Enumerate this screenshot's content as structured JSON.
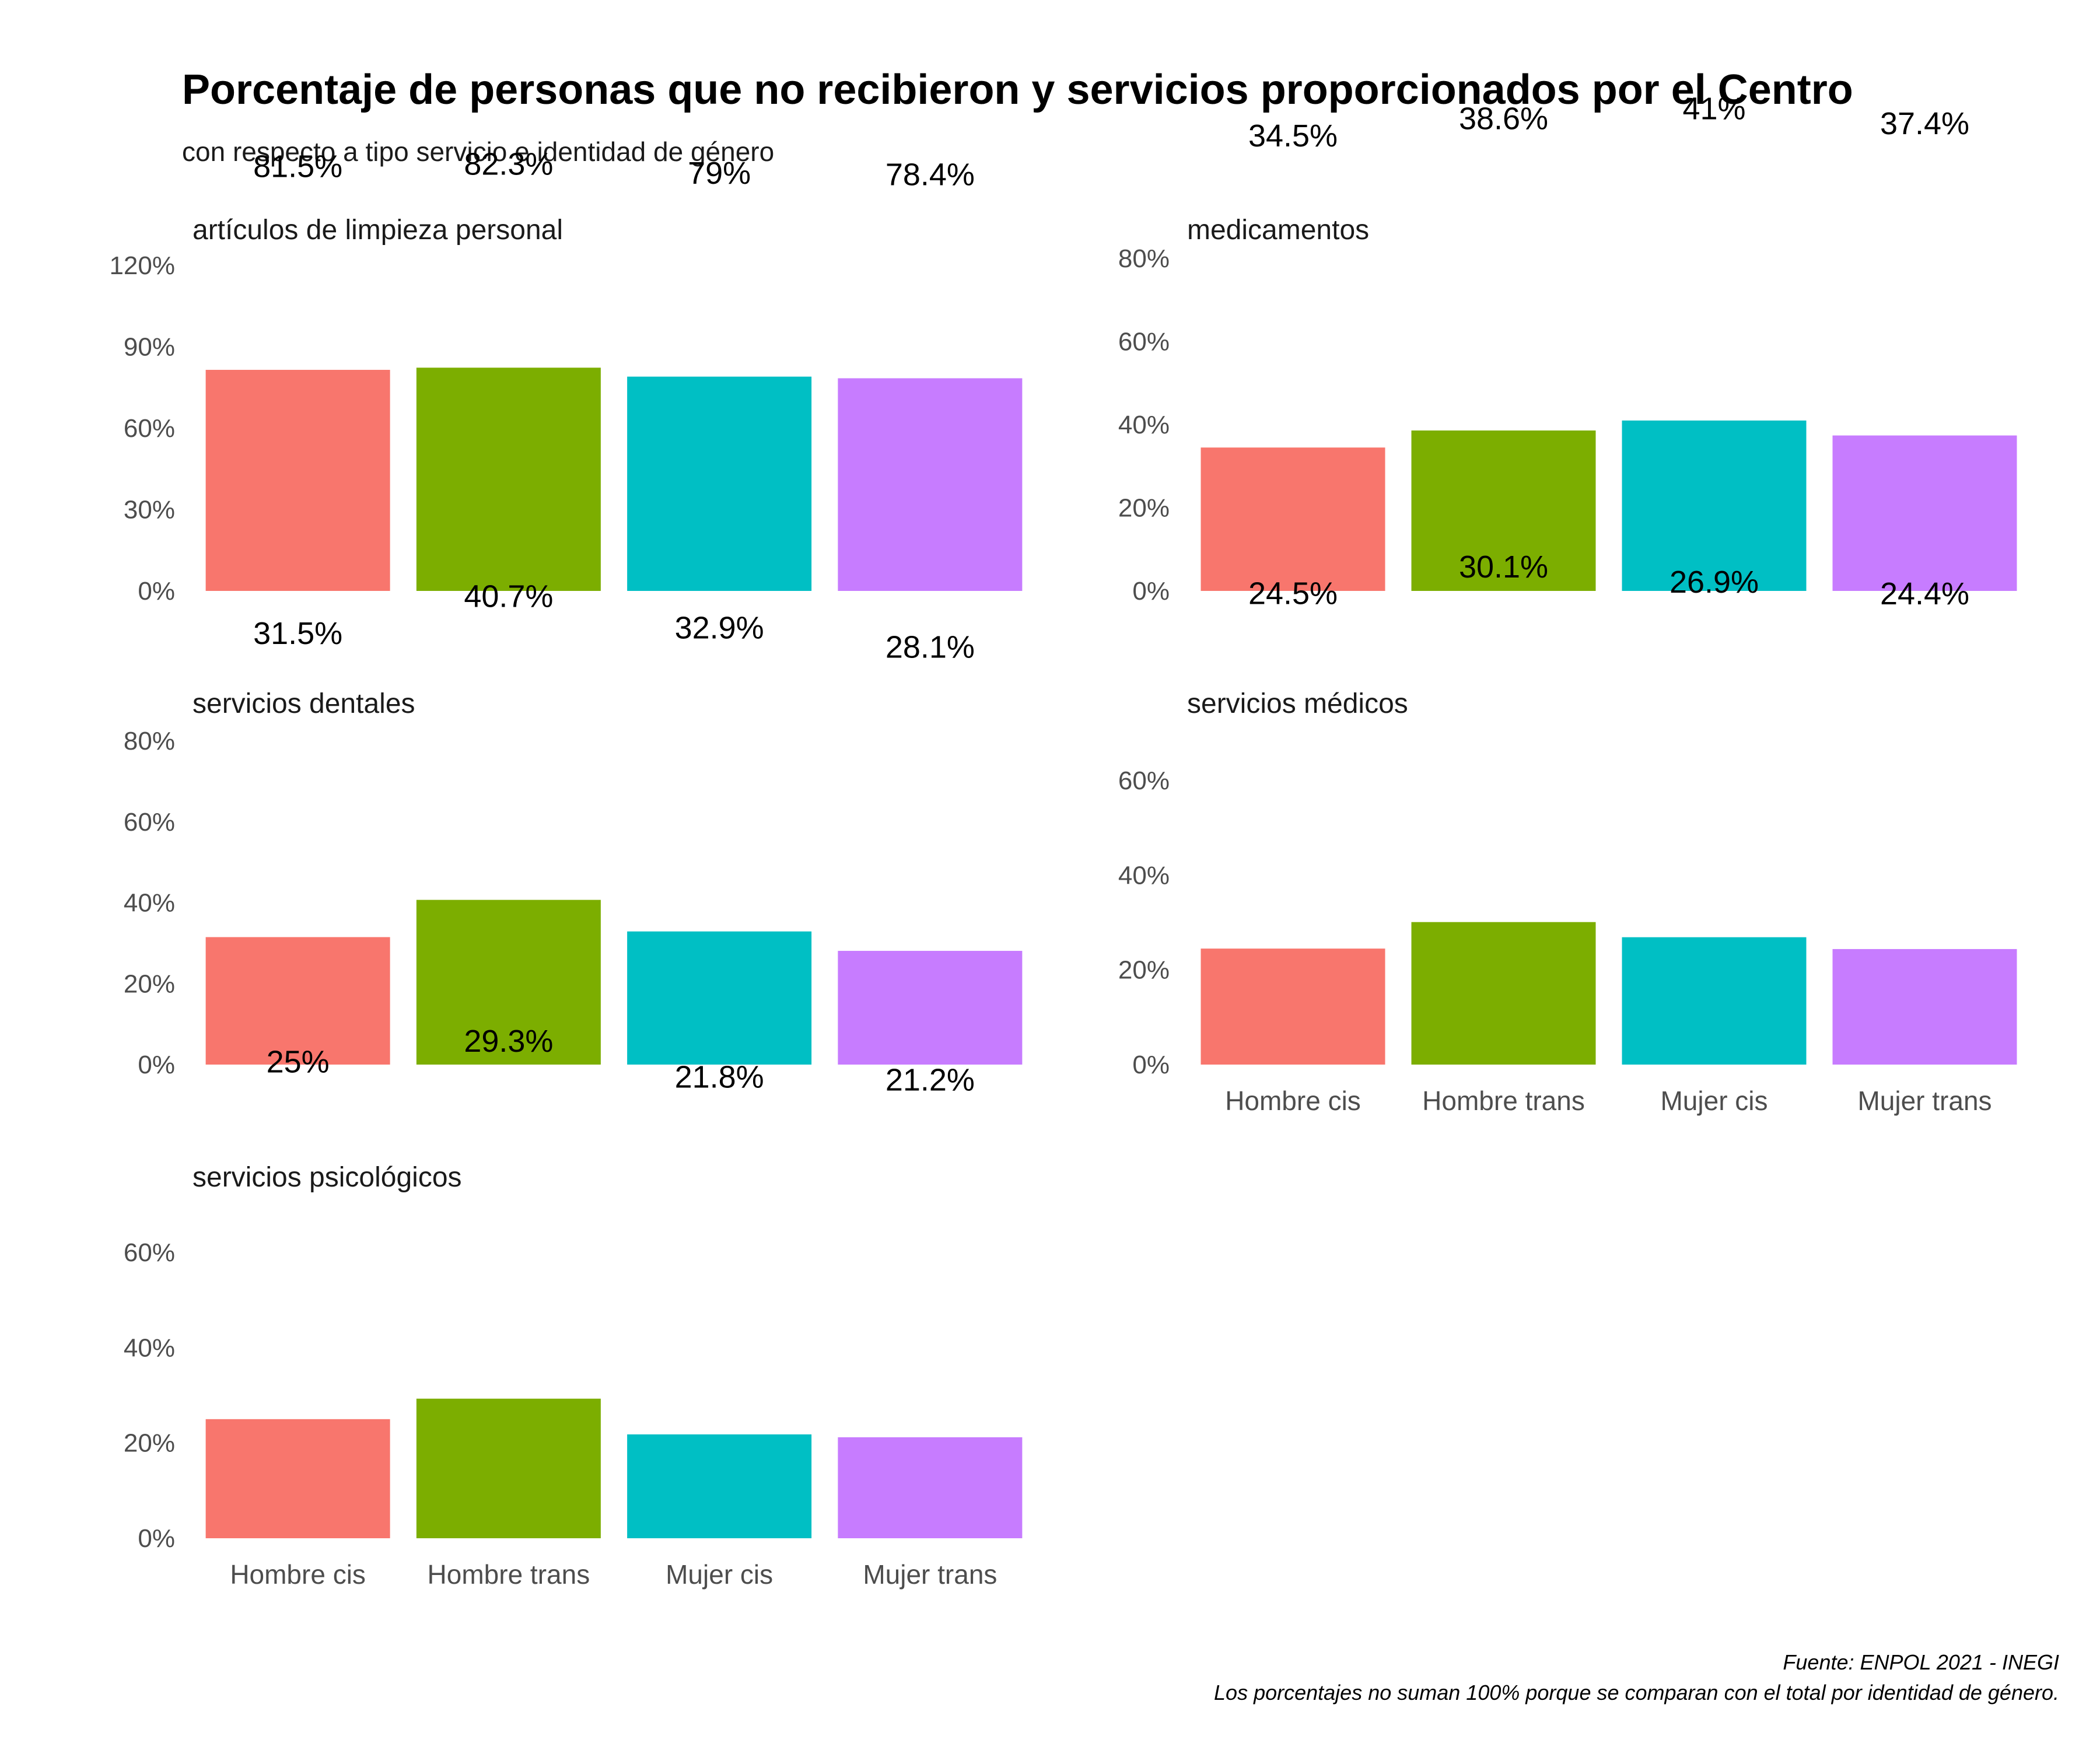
{
  "chart_data": {
    "type": "bar",
    "title": "Porcentaje de personas que no recibieron y servicios proporcionados por el Centro",
    "subtitle": "con respecto a tipo servicio e identidad de género",
    "caption": [
      "Fuente: ENPOL 2021 - INEGI",
      "Los porcentajes no suman 100% porque se comparan con el total por identidad de género."
    ],
    "categories": [
      "Hombre cis",
      "Hombre trans",
      "Mujer cis",
      "Mujer trans"
    ],
    "colors": [
      "#F8766D",
      "#7CAE00",
      "#00BFC4",
      "#C77CFF"
    ],
    "legend": "none",
    "grid": false,
    "panels": [
      {
        "name": "artículos de limpieza personal",
        "values": [
          81.5,
          82.3,
          79.0,
          78.4
        ],
        "labels": [
          "81.5%",
          "82.3%",
          "79%",
          "78.4%"
        ],
        "yticks": [
          "0%",
          "30%",
          "60%",
          "90%",
          "120%"
        ],
        "ylim": [
          0,
          120
        ],
        "show_x_labels": false
      },
      {
        "name": "medicamentos",
        "values": [
          34.5,
          38.6,
          41.0,
          37.4
        ],
        "labels": [
          "34.5%",
          "38.6%",
          "41%",
          "37.4%"
        ],
        "yticks": [
          "0%",
          "20%",
          "40%",
          "60%",
          "80%"
        ],
        "ylim": [
          0,
          80
        ],
        "show_x_labels": false
      },
      {
        "name": "servicios dentales",
        "values": [
          31.5,
          40.7,
          32.9,
          28.1
        ],
        "labels": [
          "31.5%",
          "40.7%",
          "32.9%",
          "28.1%"
        ],
        "yticks": [
          "0%",
          "20%",
          "40%",
          "60%",
          "80%"
        ],
        "ylim": [
          0,
          80
        ],
        "show_x_labels": false
      },
      {
        "name": "servicios médicos",
        "values": [
          24.5,
          30.1,
          26.9,
          24.4
        ],
        "labels": [
          "24.5%",
          "30.1%",
          "26.9%",
          "24.4%"
        ],
        "yticks": [
          "0%",
          "20%",
          "40%",
          "60%"
        ],
        "ylim": [
          0,
          60
        ],
        "show_x_labels": true
      },
      {
        "name": "servicios psicológicos",
        "values": [
          25.0,
          29.3,
          21.8,
          21.2
        ],
        "labels": [
          "25%",
          "29.3%",
          "21.8%",
          "21.2%"
        ],
        "yticks": [
          "0%",
          "20%",
          "40%",
          "60%"
        ],
        "ylim": [
          0,
          60
        ],
        "show_x_labels": true
      }
    ]
  }
}
